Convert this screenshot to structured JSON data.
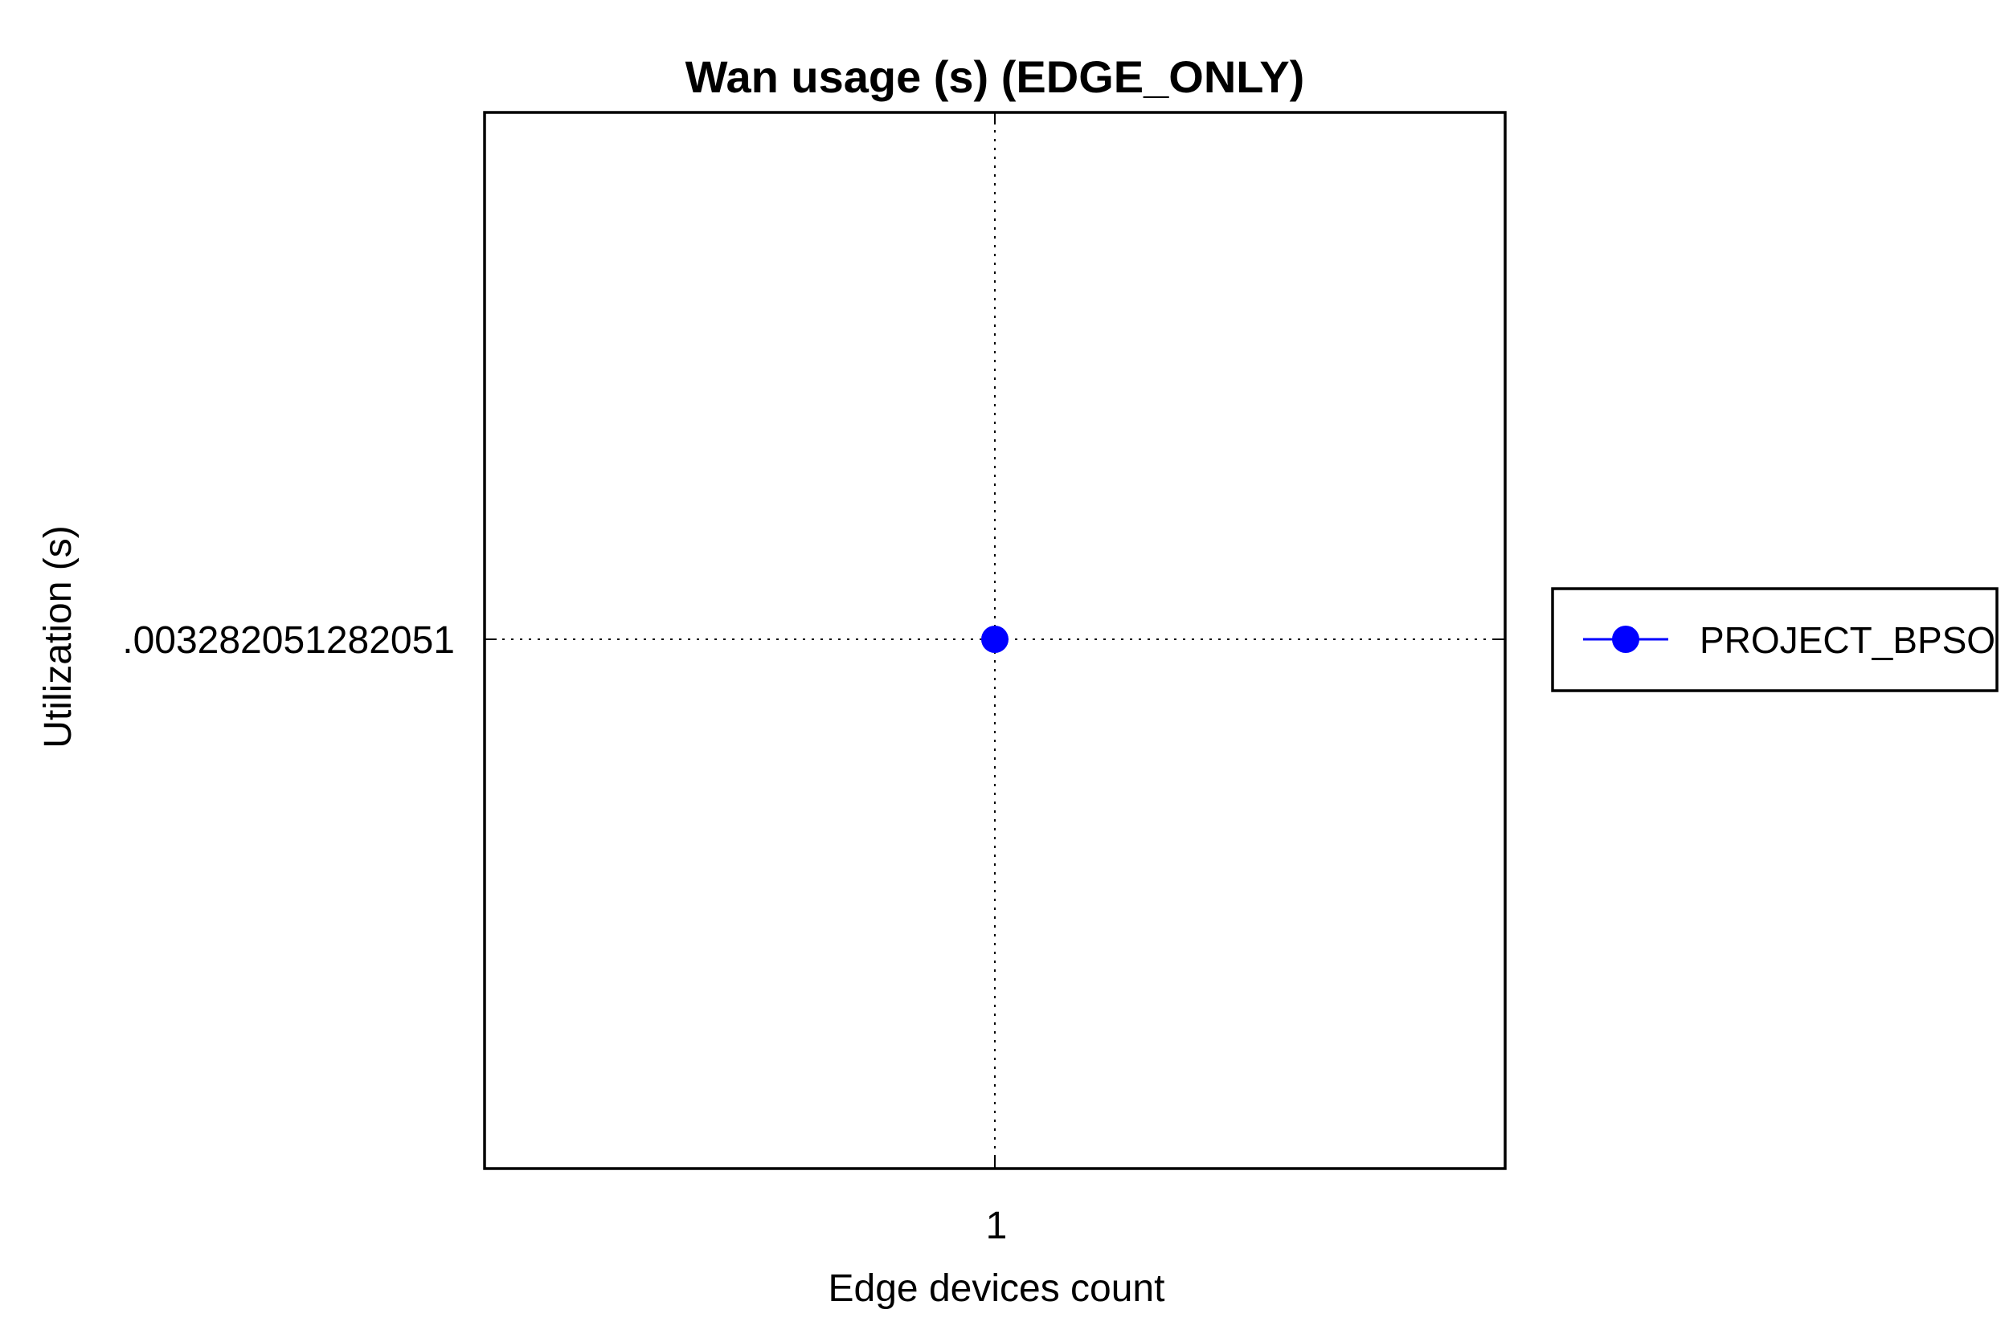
{
  "chart_data": {
    "type": "line",
    "title": "Wan usage (s) (EDGE_ONLY)",
    "xlabel": "Edge devices count",
    "ylabel": "Utilization (s)",
    "x_tick_labels": [
      "1"
    ],
    "y_tick_labels": [
      ".003282051282051"
    ],
    "grid": true,
    "legend_position": "right",
    "series": [
      {
        "name": "PROJECT_BPSO",
        "color": "#0000ff",
        "marker": "circle",
        "points": [
          {
            "x": 1,
            "y": 0.003282051282051
          }
        ]
      }
    ]
  }
}
